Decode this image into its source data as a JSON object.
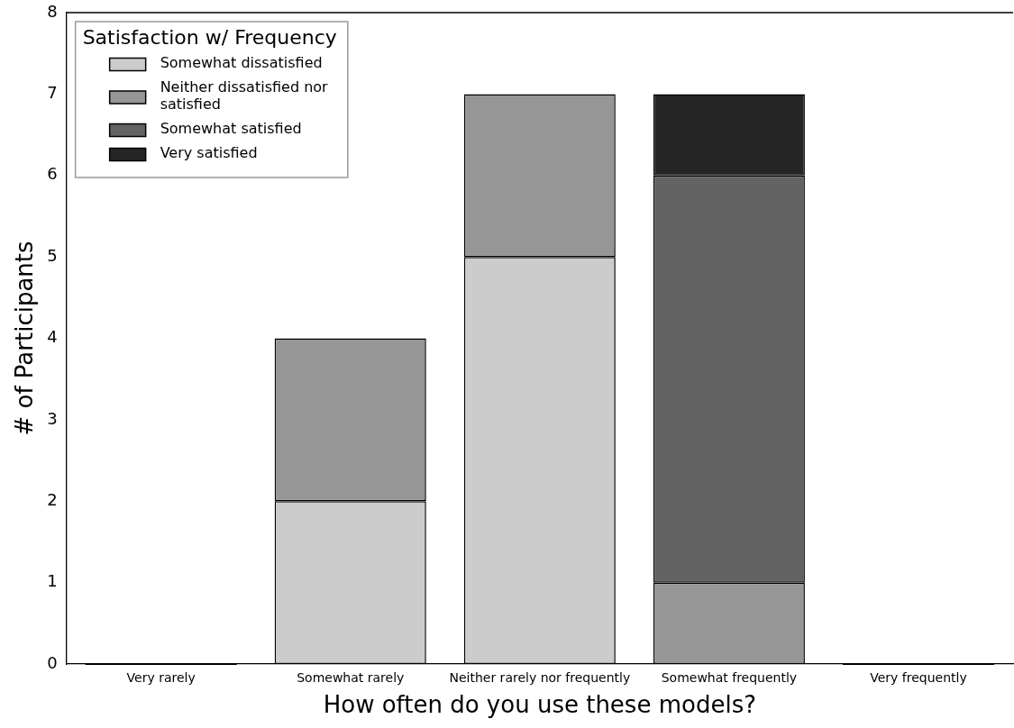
{
  "chart_data": {
    "type": "bar",
    "stacked": true,
    "xlabel": "How often do you use these models?",
    "ylabel": "# of Participants",
    "legend_title": "Satisfaction w/ Frequency",
    "legend": "top left",
    "grid": false,
    "categories": [
      "Very rarely",
      "Somewhat rarely",
      "Neither rarely nor frequently",
      "Somewhat frequently",
      "Very frequently"
    ],
    "ylim": [
      0,
      8
    ],
    "yticks": [
      0,
      1,
      2,
      3,
      4,
      5,
      6,
      7,
      8
    ],
    "series": [
      {
        "name": "Somewhat dissatisfied",
        "color": "#cccccc",
        "values": [
          0,
          2,
          5,
          0,
          0
        ]
      },
      {
        "name": "Neither dissatisfied nor satisfied",
        "color": "#969696",
        "values": [
          0,
          2,
          2,
          1,
          0
        ]
      },
      {
        "name": "Somewhat satisfied",
        "color": "#636363",
        "values": [
          0,
          0,
          0,
          5,
          0
        ]
      },
      {
        "name": "Very satisfied",
        "color": "#252525",
        "values": [
          0,
          0,
          0,
          1,
          0
        ]
      }
    ]
  }
}
